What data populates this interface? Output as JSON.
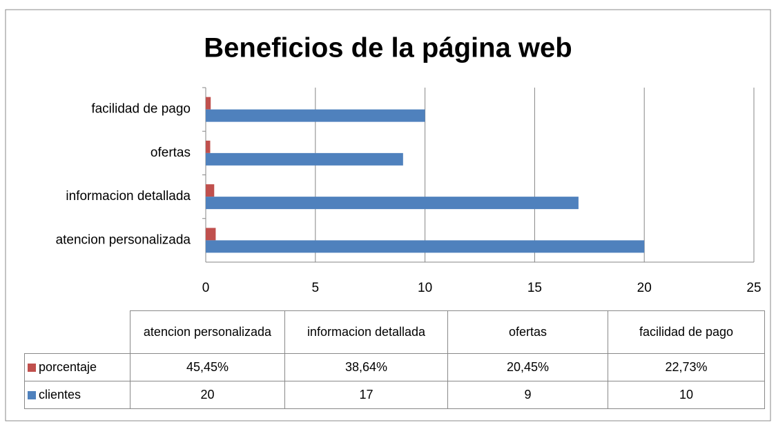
{
  "chart_data": {
    "type": "bar",
    "orientation": "horizontal",
    "title": "Beneficios de la página web",
    "categories": [
      "atencion personalizada",
      "informacion detallada",
      "ofertas",
      "facilidad de pago"
    ],
    "series": [
      {
        "name": "porcentaje",
        "color": "#c0504d",
        "values": [
          0.4545,
          0.3864,
          0.2045,
          0.2273
        ],
        "value_labels": [
          "45,45%",
          "38,64%",
          "20,45%",
          "22,73%"
        ]
      },
      {
        "name": "clientes",
        "color": "#4f81bd",
        "values": [
          20,
          17,
          9,
          10
        ]
      }
    ],
    "xlim": [
      0,
      25
    ],
    "xticks": [
      0,
      5,
      10,
      15,
      20,
      25
    ],
    "grid": true,
    "data_table": true
  }
}
